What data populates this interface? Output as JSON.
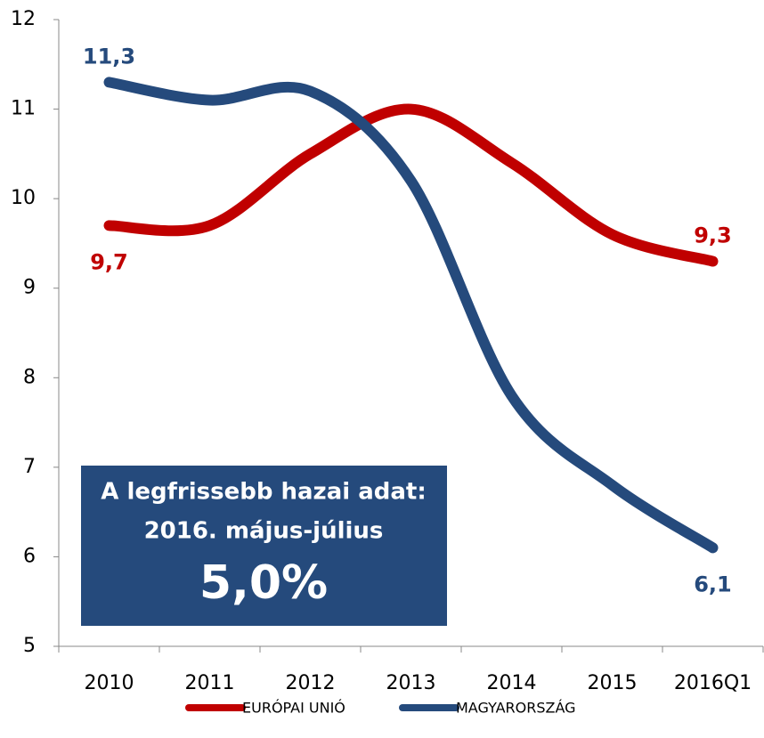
{
  "chart_data": {
    "type": "line",
    "categories": [
      "2010",
      "2011",
      "2012",
      "2013",
      "2014",
      "2015",
      "2016Q1"
    ],
    "series": [
      {
        "name": "EURÓPAI UNIÓ",
        "color": "#c00000",
        "values": [
          9.7,
          9.7,
          10.5,
          11.0,
          10.4,
          9.6,
          9.3
        ],
        "value_labels": [
          "9,7",
          null,
          null,
          null,
          null,
          null,
          "9,3"
        ]
      },
      {
        "name": "MAGYARORSZÁG",
        "color": "#254a7c",
        "values": [
          11.3,
          11.1,
          11.2,
          10.2,
          7.8,
          6.8,
          6.1
        ],
        "value_labels": [
          "11,3",
          null,
          null,
          null,
          null,
          null,
          "6,1"
        ]
      }
    ],
    "ylim": [
      5,
      12
    ],
    "yticks": [
      5,
      6,
      7,
      8,
      9,
      10,
      11,
      12
    ],
    "annotation": {
      "lines": [
        "A legfrissebb hazai adat:",
        "2016. május-július",
        "5,0%"
      ],
      "color": "#254a7c"
    },
    "legend": "bottom"
  }
}
